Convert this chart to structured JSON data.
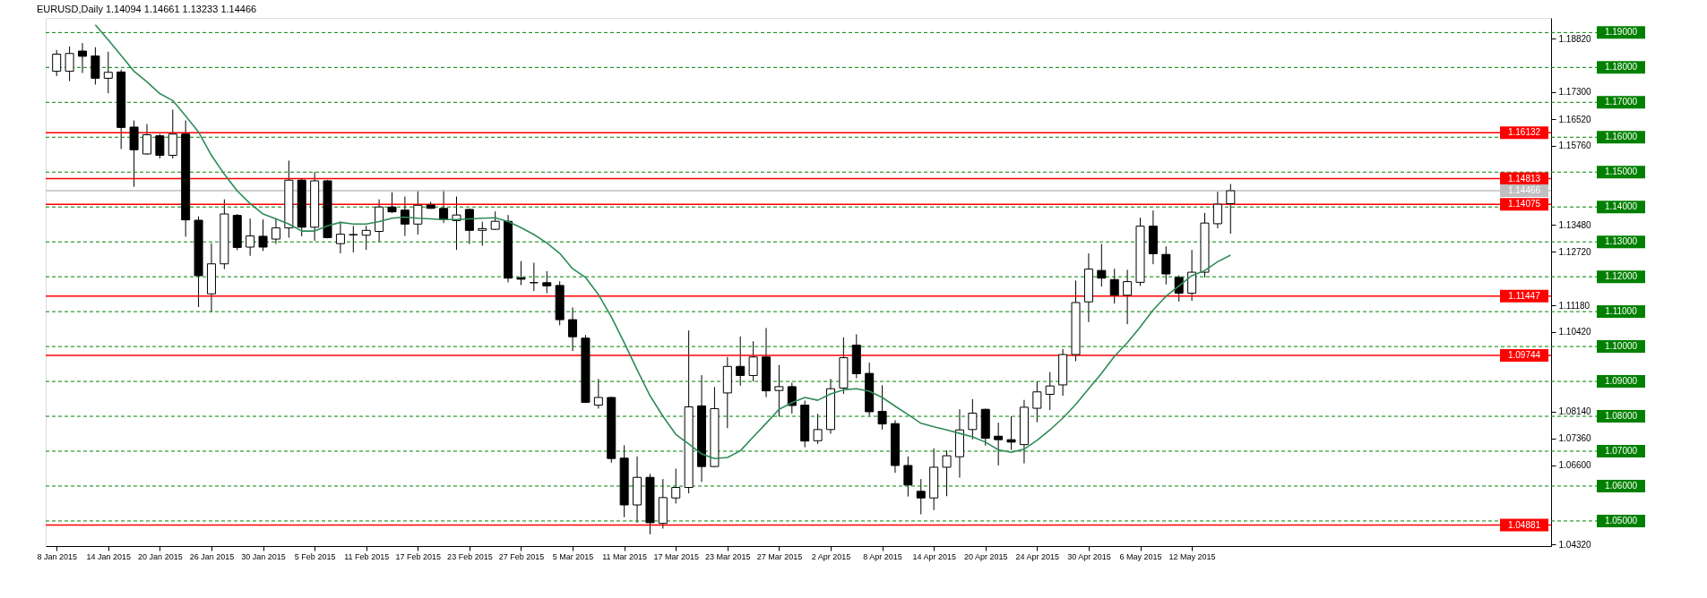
{
  "chart_data": {
    "type": "candlestick",
    "title": "EURUSD,Daily  1.14094 1.14661 1.13233 1.14466",
    "categories": [
      "8 Jan 2015",
      null,
      null,
      null,
      "14 Jan 2015",
      null,
      null,
      null,
      "20 Jan 2015",
      null,
      null,
      null,
      "26 Jan 2015",
      null,
      null,
      null,
      "30 Jan 2015",
      null,
      null,
      null,
      "5 Feb 2015",
      null,
      null,
      null,
      "11 Feb 2015",
      null,
      null,
      null,
      "17 Feb 2015",
      null,
      null,
      null,
      "23 Feb 2015",
      null,
      null,
      null,
      "27 Feb 2015",
      null,
      null,
      null,
      "5 Mar 2015",
      null,
      null,
      null,
      "11 Mar 2015",
      null,
      null,
      null,
      "17 Mar 2015",
      null,
      null,
      null,
      "23 Mar 2015",
      null,
      null,
      null,
      "27 Mar 2015",
      null,
      null,
      null,
      "2 Apr 2015",
      null,
      null,
      null,
      "8 Apr 2015",
      null,
      null,
      null,
      "14 Apr 2015",
      null,
      null,
      null,
      "20 Apr 2015",
      null,
      null,
      null,
      "24 Apr 2015",
      null,
      null,
      null,
      "30 Apr 2015",
      null,
      null,
      null,
      "6 May 2015",
      null,
      null,
      null,
      "12 May 2015",
      null,
      null,
      null,
      null,
      null,
      null,
      null,
      null,
      null,
      null,
      null,
      null,
      null,
      null,
      null,
      null,
      null,
      null,
      null,
      null,
      null,
      null,
      null,
      null,
      null,
      null,
      null
    ],
    "ohlc": [
      [
        1.1789,
        1.185,
        1.1775,
        1.1838
      ],
      [
        1.1789,
        1.186,
        1.1761,
        1.184
      ],
      [
        1.1847,
        1.187,
        1.1784,
        1.1832
      ],
      [
        1.1833,
        1.1858,
        1.1751,
        1.1769
      ],
      [
        1.1769,
        1.1845,
        1.1726,
        1.1786
      ],
      [
        1.1787,
        1.1794,
        1.1566,
        1.1628
      ],
      [
        1.1629,
        1.1648,
        1.1458,
        1.1564
      ],
      [
        1.1552,
        1.1638,
        1.155,
        1.1607
      ],
      [
        1.1604,
        1.1609,
        1.1539,
        1.1548
      ],
      [
        1.1548,
        1.1679,
        1.1539,
        1.1609
      ],
      [
        1.1609,
        1.1648,
        1.1315,
        1.1363
      ],
      [
        1.1362,
        1.1373,
        1.1113,
        1.1203
      ],
      [
        1.1151,
        1.1296,
        1.1098,
        1.1237
      ],
      [
        1.1237,
        1.1422,
        1.1222,
        1.138
      ],
      [
        1.1376,
        1.138,
        1.1276,
        1.1284
      ],
      [
        1.1285,
        1.1367,
        1.126,
        1.1317
      ],
      [
        1.1316,
        1.1364,
        1.1274,
        1.1285
      ],
      [
        1.1308,
        1.1366,
        1.1294,
        1.134
      ],
      [
        1.134,
        1.1533,
        1.1312,
        1.1477
      ],
      [
        1.1477,
        1.148,
        1.1316,
        1.1342
      ],
      [
        1.1342,
        1.15,
        1.1303,
        1.1475
      ],
      [
        1.1475,
        1.1478,
        1.131,
        1.1312
      ],
      [
        1.1295,
        1.1358,
        1.1267,
        1.1322
      ],
      [
        1.132,
        1.1346,
        1.127,
        1.1321
      ],
      [
        1.1319,
        1.1346,
        1.1277,
        1.1333
      ],
      [
        1.133,
        1.1422,
        1.13,
        1.14
      ],
      [
        1.14,
        1.1442,
        1.1383,
        1.1386
      ],
      [
        1.1391,
        1.143,
        1.1317,
        1.1351
      ],
      [
        1.1351,
        1.1447,
        1.1321,
        1.1405
      ],
      [
        1.1406,
        1.1415,
        1.1395,
        1.1396
      ],
      [
        1.1396,
        1.1449,
        1.1354,
        1.1364
      ],
      [
        1.1361,
        1.143,
        1.1277,
        1.1377
      ],
      [
        1.1393,
        1.1395,
        1.1294,
        1.1333
      ],
      [
        1.1333,
        1.1358,
        1.1289,
        1.1338
      ],
      [
        1.1336,
        1.1387,
        1.1334,
        1.1359
      ],
      [
        1.1359,
        1.1377,
        1.1184,
        1.1196
      ],
      [
        1.1197,
        1.1245,
        1.1176,
        1.1193
      ],
      [
        1.1183,
        1.124,
        1.1159,
        1.1183
      ],
      [
        1.1183,
        1.1216,
        1.1153,
        1.1174
      ],
      [
        1.1175,
        1.1187,
        1.1061,
        1.1077
      ],
      [
        1.1077,
        1.1112,
        1.0987,
        1.1028
      ],
      [
        1.1024,
        1.1033,
        1.0838,
        1.084
      ],
      [
        1.0832,
        1.0907,
        1.0822,
        1.0854
      ],
      [
        1.0854,
        1.0856,
        1.0667,
        1.0679
      ],
      [
        1.068,
        1.0717,
        1.0511,
        1.0546
      ],
      [
        1.0546,
        1.0685,
        1.0495,
        1.0625
      ],
      [
        1.0625,
        1.0635,
        1.0462,
        1.0495
      ],
      [
        1.0493,
        1.062,
        1.0478,
        1.0567
      ],
      [
        1.0566,
        1.065,
        1.055,
        1.0596
      ],
      [
        1.0596,
        1.1046,
        1.0579,
        1.0827
      ],
      [
        1.083,
        1.0918,
        1.0612,
        1.0656
      ],
      [
        1.0656,
        1.0884,
        1.0655,
        1.0822
      ],
      [
        1.0867,
        1.097,
        1.0766,
        1.0943
      ],
      [
        1.0943,
        1.1029,
        1.0888,
        1.0917
      ],
      [
        1.0917,
        1.1015,
        1.09,
        1.097
      ],
      [
        1.097,
        1.1053,
        1.0855,
        1.0873
      ],
      [
        1.0874,
        1.0947,
        1.0799,
        1.0885
      ],
      [
        1.0885,
        1.0896,
        1.0808,
        1.0831
      ],
      [
        1.0832,
        1.0845,
        1.0711,
        1.0729
      ],
      [
        1.073,
        1.0807,
        1.0721,
        1.0762
      ],
      [
        1.0762,
        1.0907,
        1.075,
        1.0879
      ],
      [
        1.0881,
        1.1026,
        1.0864,
        1.0968
      ],
      [
        1.1004,
        1.1035,
        1.0909,
        1.0922
      ],
      [
        1.0923,
        1.0954,
        1.0802,
        1.0813
      ],
      [
        1.0814,
        1.0889,
        1.0762,
        1.0778
      ],
      [
        1.0779,
        1.0789,
        1.0638,
        1.0659
      ],
      [
        1.0659,
        1.0685,
        1.057,
        1.0603
      ],
      [
        1.0585,
        1.062,
        1.0519,
        1.0566
      ],
      [
        1.0566,
        1.0708,
        1.0531,
        1.0654
      ],
      [
        1.0654,
        1.0702,
        1.0571,
        1.0687
      ],
      [
        1.0684,
        1.082,
        1.0624,
        1.0761
      ],
      [
        1.0762,
        1.0849,
        1.0734,
        1.0809
      ],
      [
        1.082,
        1.0822,
        1.0716,
        1.0737
      ],
      [
        1.0743,
        1.0782,
        1.0659,
        1.0733
      ],
      [
        1.0733,
        1.08,
        1.0704,
        1.0726
      ],
      [
        1.0719,
        1.0847,
        1.0665,
        1.0826
      ],
      [
        1.0823,
        1.09,
        1.0783,
        1.087
      ],
      [
        1.0863,
        1.0927,
        1.0818,
        1.0887
      ],
      [
        1.089,
        1.0993,
        1.0859,
        1.0977
      ],
      [
        1.0977,
        1.1189,
        1.0958,
        1.1126
      ],
      [
        1.1128,
        1.1267,
        1.107,
        1.1222
      ],
      [
        1.1218,
        1.1294,
        1.1172,
        1.1196
      ],
      [
        1.1192,
        1.1223,
        1.1123,
        1.1147
      ],
      [
        1.1147,
        1.122,
        1.1064,
        1.1186
      ],
      [
        1.1184,
        1.1369,
        1.1174,
        1.1345
      ],
      [
        1.1345,
        1.139,
        1.1236,
        1.1266
      ],
      [
        1.1264,
        1.1287,
        1.1178,
        1.1208
      ],
      [
        1.1198,
        1.1204,
        1.1129,
        1.1153
      ],
      [
        1.1153,
        1.1277,
        1.1131,
        1.1213
      ],
      [
        1.1213,
        1.1383,
        1.1198,
        1.1354
      ],
      [
        1.1352,
        1.1444,
        1.1339,
        1.1408
      ],
      [
        1.14094,
        1.14661,
        1.13233,
        1.14466
      ],
      null,
      null,
      null,
      null,
      null,
      null,
      null,
      null,
      null,
      null,
      null,
      null,
      null,
      null,
      null,
      null,
      null,
      null,
      null,
      null,
      null,
      null,
      null,
      null
    ],
    "series": [
      {
        "type": "line",
        "color": "#2e8b57",
        "values": [
          null,
          null,
          null,
          1.1922,
          1.1879,
          1.1834,
          1.1789,
          1.1759,
          1.1725,
          1.1705,
          1.1661,
          1.1615,
          1.1548,
          1.1494,
          1.1446,
          1.141,
          1.138,
          1.1366,
          1.1351,
          1.1331,
          1.1331,
          1.1346,
          1.1356,
          1.1351,
          1.1351,
          1.1358,
          1.1368,
          1.1371,
          1.1368,
          1.1366,
          1.1364,
          1.1364,
          1.1366,
          1.1368,
          1.1369,
          1.1358,
          1.1341,
          1.1321,
          1.1297,
          1.1267,
          1.1223,
          1.1198,
          1.1149,
          1.1085,
          1.1011,
          1.0933,
          1.0859,
          1.08,
          1.0748,
          1.0721,
          1.0692,
          1.0679,
          1.0682,
          1.0701,
          1.0741,
          1.078,
          1.082,
          1.0839,
          1.0854,
          1.0846,
          1.0864,
          1.0876,
          1.0879,
          1.0872,
          1.0854,
          1.0829,
          1.0805,
          1.078,
          1.077,
          1.0761,
          1.0751,
          1.0741,
          1.0726,
          1.0704,
          1.0697,
          1.0706,
          1.0731,
          1.0761,
          1.0795,
          1.0834,
          1.0879,
          1.0923,
          1.0972,
          1.1011,
          1.1056,
          1.1105,
          1.1144,
          1.1174,
          1.1203,
          1.1218,
          1.1243,
          1.1262,
          null,
          null,
          null,
          null,
          null,
          null,
          null,
          null,
          null,
          null,
          null,
          null,
          null,
          null,
          null,
          null,
          null,
          null,
          null,
          null,
          null,
          null,
          null,
          null
        ]
      }
    ],
    "ylim": [
      1.0428,
      1.1942
    ],
    "yticks": [
      {
        "value": 1.1882,
        "label": "1.18820"
      },
      {
        "value": 1.173,
        "label": "1.17300"
      },
      {
        "value": 1.1652,
        "label": "1.16520"
      },
      {
        "value": 1.1576,
        "label": "1.15760"
      },
      {
        "value": 1.1348,
        "label": "1.13480"
      },
      {
        "value": 1.1272,
        "label": "1.12720"
      },
      {
        "value": 1.1118,
        "label": "1.11180"
      },
      {
        "value": 1.1042,
        "label": "1.10420"
      },
      {
        "value": 1.0814,
        "label": "1.08140"
      },
      {
        "value": 1.0736,
        "label": "1.07360"
      },
      {
        "value": 1.066,
        "label": "1.06600"
      },
      {
        "value": 1.0432,
        "label": "1.04320"
      }
    ],
    "ref_lines": [
      {
        "axis": "y",
        "value": 1.19,
        "label": "1.19000",
        "color": "#008000",
        "line_style": "dashed"
      },
      {
        "axis": "y",
        "value": 1.18,
        "label": "1.18000",
        "color": "#008000",
        "line_style": "dashed"
      },
      {
        "axis": "y",
        "value": 1.17,
        "label": "1.17000",
        "color": "#008000",
        "line_style": "dashed"
      },
      {
        "axis": "y",
        "value": 1.16,
        "label": "1.16000",
        "color": "#008000",
        "line_style": "dashed"
      },
      {
        "axis": "y",
        "value": 1.15,
        "label": "1.15000",
        "color": "#008000",
        "line_style": "dashed"
      },
      {
        "axis": "y",
        "value": 1.14,
        "label": "1.14000",
        "color": "#008000",
        "line_style": "dashed"
      },
      {
        "axis": "y",
        "value": 1.13,
        "label": "1.13000",
        "color": "#008000",
        "line_style": "dashed"
      },
      {
        "axis": "y",
        "value": 1.12,
        "label": "1.12000",
        "color": "#008000",
        "line_style": "dashed"
      },
      {
        "axis": "y",
        "value": 1.11,
        "label": "1.11000",
        "color": "#008000",
        "line_style": "dashed"
      },
      {
        "axis": "y",
        "value": 1.1,
        "label": "1.10000",
        "color": "#008000",
        "line_style": "dashed"
      },
      {
        "axis": "y",
        "value": 1.09,
        "label": "1.09000",
        "color": "#008000",
        "line_style": "dashed"
      },
      {
        "axis": "y",
        "value": 1.08,
        "label": "1.08000",
        "color": "#008000",
        "line_style": "dashed"
      },
      {
        "axis": "y",
        "value": 1.07,
        "label": "1.07000",
        "color": "#008000",
        "line_style": "dashed"
      },
      {
        "axis": "y",
        "value": 1.06,
        "label": "1.06000",
        "color": "#008000",
        "line_style": "dashed"
      },
      {
        "axis": "y",
        "value": 1.05,
        "label": "1.05000",
        "color": "#008000",
        "line_style": "dashed"
      },
      {
        "axis": "y",
        "value": 1.16132,
        "label": "1.16132",
        "color": "#ff0000",
        "line_style": "solid"
      },
      {
        "axis": "y",
        "value": 1.14813,
        "label": "1.14813",
        "color": "#ff0000",
        "line_style": "solid"
      },
      {
        "axis": "y",
        "value": 1.14466,
        "label": "1.14466",
        "color": "#c0c0c0",
        "line_style": "solid"
      },
      {
        "axis": "y",
        "value": 1.14075,
        "label": "1.14075",
        "color": "#ff0000",
        "line_style": "solid"
      },
      {
        "axis": "y",
        "value": 1.11447,
        "label": "1.11447",
        "color": "#ff0000",
        "line_style": "solid"
      },
      {
        "axis": "y",
        "value": 1.09744,
        "label": "1.09744",
        "color": "#ff0000",
        "line_style": "solid"
      },
      {
        "axis": "y",
        "value": 1.04881,
        "label": "1.04881",
        "color": "#ff0000",
        "line_style": "solid"
      }
    ]
  }
}
